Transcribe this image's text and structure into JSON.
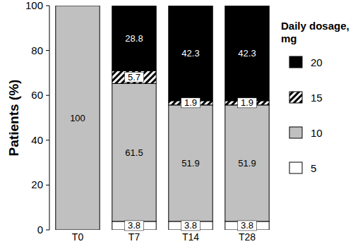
{
  "chart_data": {
    "type": "bar",
    "stacked": true,
    "data_labels": true,
    "legend": "right",
    "y_label": "Patients (%)",
    "legend_title": "Daily dosage, mg",
    "categories": [
      "T0",
      "T7",
      "T14",
      "T28"
    ],
    "ylim": [
      0,
      100
    ],
    "yticks": [
      0,
      20,
      40,
      60,
      80,
      100
    ],
    "series": [
      {
        "name": "5",
        "color": "#ffffff",
        "values": [
          0,
          3.8,
          3.8,
          3.8
        ]
      },
      {
        "name": "10",
        "color": "#c0c0c0",
        "values": [
          100,
          61.5,
          51.9,
          51.9
        ]
      },
      {
        "name": "15",
        "color": "#ffffff",
        "line_style": "hatch",
        "values": [
          0,
          5.7,
          1.9,
          1.9
        ]
      },
      {
        "name": "20",
        "color": "#000000",
        "values": [
          0,
          28.8,
          42.3,
          42.3
        ]
      }
    ]
  }
}
